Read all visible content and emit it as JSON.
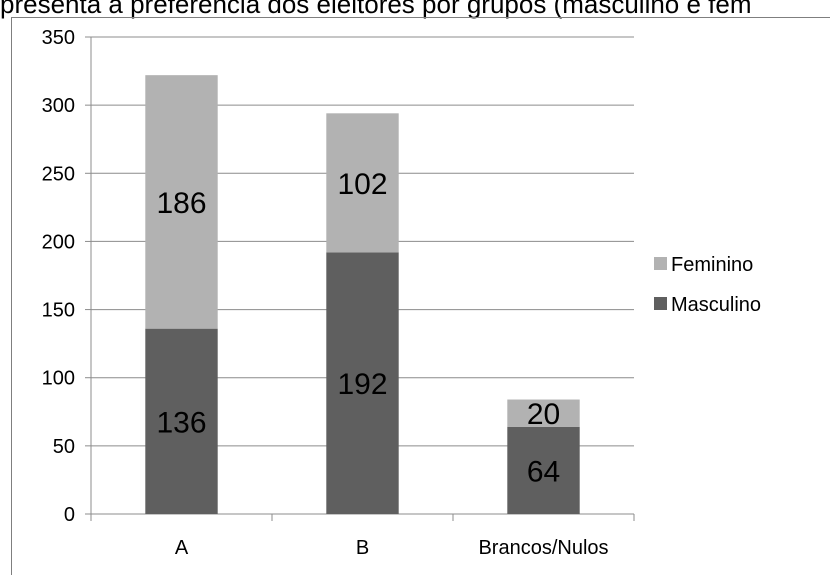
{
  "page": {
    "caption": "presenta a preferência dos eleitores por grupos (masculino e fem"
  },
  "chart_data": {
    "type": "bar",
    "stacked": true,
    "categories": [
      "A",
      "B",
      "Brancos/Nulos"
    ],
    "series": [
      {
        "name": "Masculino",
        "values": [
          136,
          192,
          64
        ],
        "color": "#5f5f5f"
      },
      {
        "name": "Feminino",
        "values": [
          186,
          102,
          20
        ],
        "color": "#b2b2b2"
      }
    ],
    "ylim": [
      0,
      350
    ],
    "yticks": [
      0,
      50,
      100,
      150,
      200,
      250,
      300,
      350
    ],
    "ytick_labels": [
      "0",
      "50",
      "100",
      "150",
      "200",
      "250",
      "300",
      "350"
    ],
    "grid": true,
    "legend": {
      "position": "right",
      "entries": [
        {
          "label": "Feminino",
          "color": "#b2b2b2"
        },
        {
          "label": "Masculino",
          "color": "#5f5f5f"
        }
      ]
    },
    "title": "",
    "xlabel": "",
    "ylabel": ""
  }
}
